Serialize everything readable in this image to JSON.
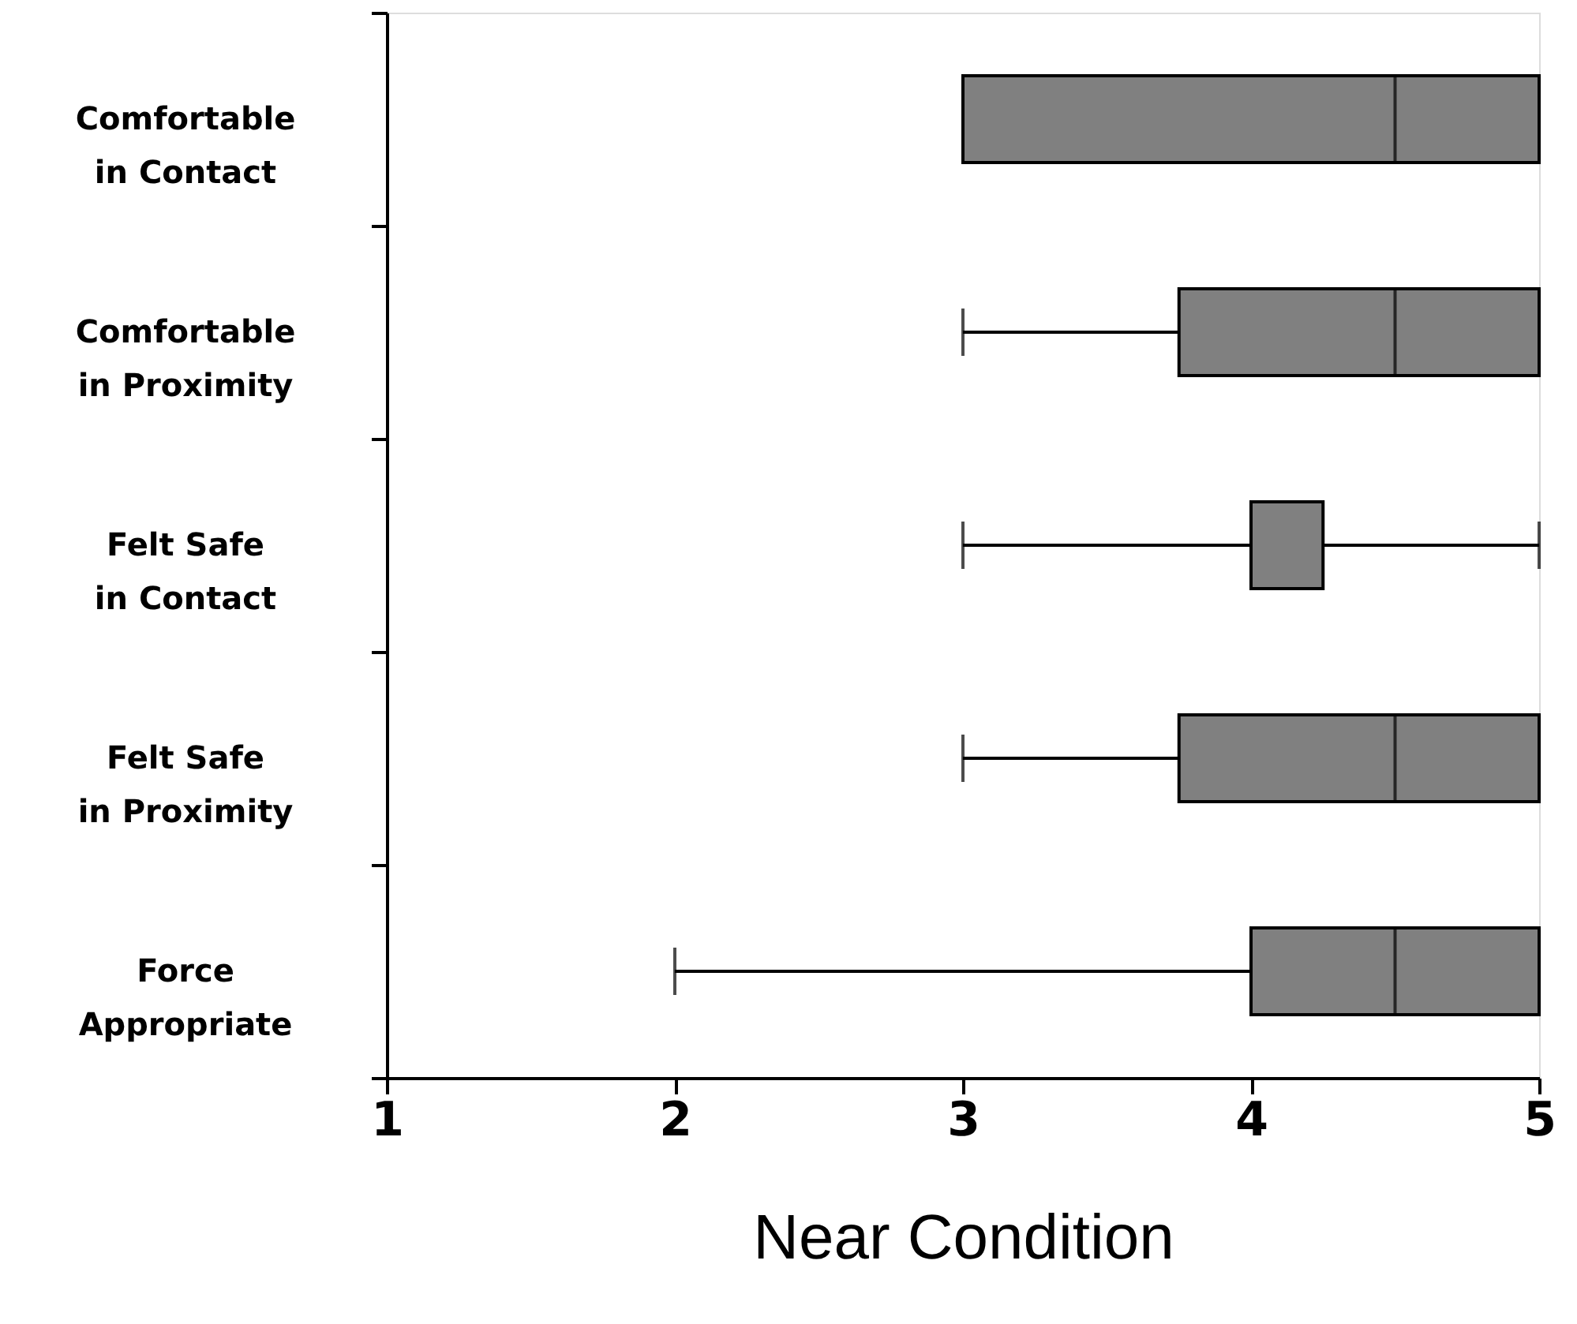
{
  "chart_data": {
    "type": "box",
    "orientation": "horizontal",
    "xlabel": "Near Condition",
    "categories": [
      "Comfortable\nin Contact",
      "Comfortable\nin Proximity",
      "Felt Safe\nin Contact",
      "Felt Safe\nin Proximity",
      "Force\nAppropriate"
    ],
    "boxes": [
      {
        "low": 3,
        "q1": 3,
        "median": 4.5,
        "q3": 5,
        "high": 5
      },
      {
        "low": 3,
        "q1": 3.75,
        "median": 4.5,
        "q3": 5,
        "high": 5
      },
      {
        "low": 3,
        "q1": 4,
        "median": 4,
        "q3": 4.25,
        "high": 5
      },
      {
        "low": 3,
        "q1": 3.75,
        "median": 4.5,
        "q3": 5,
        "high": 5
      },
      {
        "low": 2,
        "q1": 4,
        "median": 4.5,
        "q3": 5,
        "high": 5
      }
    ],
    "color": "#808080",
    "xlim": [
      1,
      5
    ],
    "xticks": [
      1,
      2,
      3,
      4,
      5
    ],
    "grid": false
  }
}
